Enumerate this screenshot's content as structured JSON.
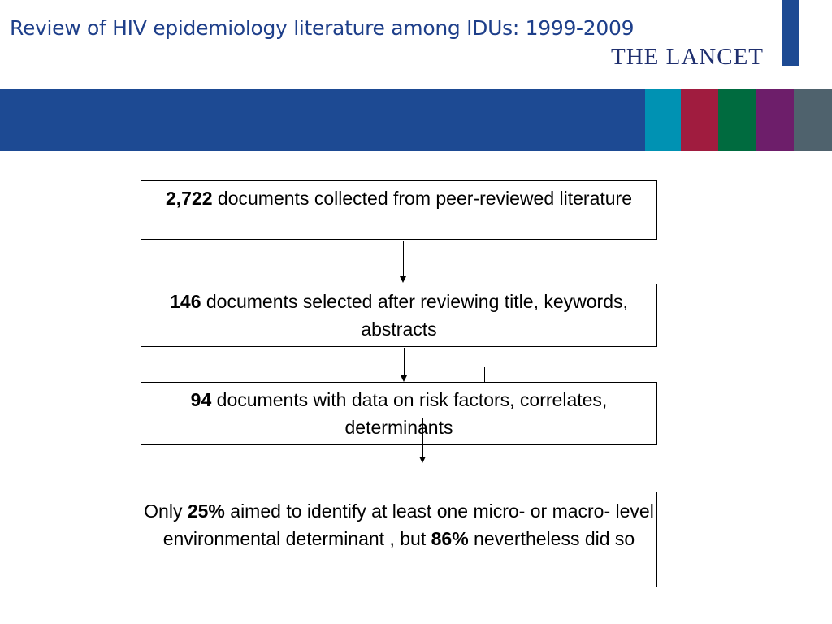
{
  "header": {
    "title": "Review of HIV epidemiology literature among IDUs:  1999-2009",
    "journal_logo": "THE LANCET",
    "band_colors": [
      "#1d4a93",
      "#0092b3",
      "#a01c3f",
      "#006b3f",
      "#6d1e6a",
      "#4f626d"
    ]
  },
  "flow": {
    "box1": {
      "bold": "2,722",
      "text": " documents collected from peer-reviewed literature"
    },
    "box2": {
      "bold": "146",
      "text": " documents selected after reviewing title, keywords, abstracts"
    },
    "box3": {
      "bold": "94",
      "text": " documents with data on risk factors, correlates, determinants"
    },
    "box4": {
      "prefix": "Only ",
      "bold1": "25%",
      "middle": " aimed to identify at least one micro- or macro- level environmental determinant , but ",
      "bold2": "86%",
      "suffix": " nevertheless did so"
    }
  }
}
